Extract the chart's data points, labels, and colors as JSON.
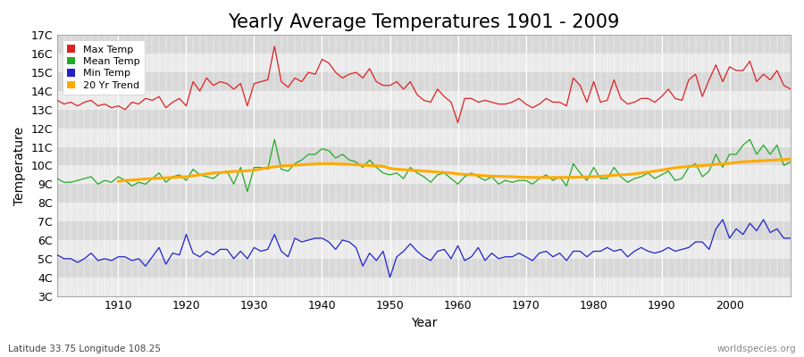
{
  "title": "Yearly Average Temperatures 1901 - 2009",
  "xlabel": "Year",
  "ylabel": "Temperature",
  "lat_lon_label": "Latitude 33.75 Longitude 108.25",
  "watermark": "worldspecies.org",
  "years": [
    1901,
    1902,
    1903,
    1904,
    1905,
    1906,
    1907,
    1908,
    1909,
    1910,
    1911,
    1912,
    1913,
    1914,
    1915,
    1916,
    1917,
    1918,
    1919,
    1920,
    1921,
    1922,
    1923,
    1924,
    1925,
    1926,
    1927,
    1928,
    1929,
    1930,
    1931,
    1932,
    1933,
    1934,
    1935,
    1936,
    1937,
    1938,
    1939,
    1940,
    1941,
    1942,
    1943,
    1944,
    1945,
    1946,
    1947,
    1948,
    1949,
    1950,
    1951,
    1952,
    1953,
    1954,
    1955,
    1956,
    1957,
    1958,
    1959,
    1960,
    1961,
    1962,
    1963,
    1964,
    1965,
    1966,
    1967,
    1968,
    1969,
    1970,
    1971,
    1972,
    1973,
    1974,
    1975,
    1976,
    1977,
    1978,
    1979,
    1980,
    1981,
    1982,
    1983,
    1984,
    1985,
    1986,
    1987,
    1988,
    1989,
    1990,
    1991,
    1992,
    1993,
    1994,
    1995,
    1996,
    1997,
    1998,
    1999,
    2000,
    2001,
    2002,
    2003,
    2004,
    2005,
    2006,
    2007,
    2008,
    2009
  ],
  "max_temp": [
    13.5,
    13.3,
    13.4,
    13.2,
    13.4,
    13.5,
    13.2,
    13.3,
    13.1,
    13.2,
    13.0,
    13.4,
    13.3,
    13.6,
    13.5,
    13.7,
    13.1,
    13.4,
    13.6,
    13.2,
    14.5,
    14.0,
    14.7,
    14.3,
    14.5,
    14.4,
    14.1,
    14.4,
    13.2,
    14.4,
    14.5,
    14.6,
    16.4,
    14.5,
    14.2,
    14.7,
    14.5,
    15.0,
    14.9,
    15.7,
    15.5,
    15.0,
    14.7,
    14.9,
    15.0,
    14.7,
    15.2,
    14.5,
    14.3,
    14.3,
    14.5,
    14.1,
    14.5,
    13.8,
    13.5,
    13.4,
    14.1,
    13.7,
    13.4,
    12.3,
    13.6,
    13.6,
    13.4,
    13.5,
    13.4,
    13.3,
    13.3,
    13.4,
    13.6,
    13.3,
    13.1,
    13.3,
    13.6,
    13.4,
    13.4,
    13.2,
    14.7,
    14.3,
    13.4,
    14.5,
    13.4,
    13.5,
    14.6,
    13.6,
    13.3,
    13.4,
    13.6,
    13.6,
    13.4,
    13.7,
    14.1,
    13.6,
    13.5,
    14.6,
    14.9,
    13.7,
    14.6,
    15.4,
    14.5,
    15.3,
    15.1,
    15.1,
    15.6,
    14.5,
    14.9,
    14.6,
    15.1,
    14.3,
    14.1
  ],
  "mean_temp": [
    9.3,
    9.1,
    9.1,
    9.2,
    9.3,
    9.4,
    9.0,
    9.2,
    9.1,
    9.4,
    9.2,
    8.9,
    9.1,
    9.0,
    9.3,
    9.6,
    9.1,
    9.4,
    9.5,
    9.2,
    9.8,
    9.5,
    9.4,
    9.3,
    9.6,
    9.7,
    9.0,
    9.9,
    8.6,
    9.9,
    9.9,
    9.8,
    11.4,
    9.8,
    9.7,
    10.1,
    10.3,
    10.6,
    10.6,
    10.9,
    10.8,
    10.4,
    10.6,
    10.3,
    10.2,
    9.9,
    10.3,
    9.9,
    9.6,
    9.5,
    9.6,
    9.3,
    9.9,
    9.6,
    9.4,
    9.1,
    9.5,
    9.6,
    9.3,
    9.0,
    9.4,
    9.6,
    9.4,
    9.2,
    9.4,
    9.0,
    9.2,
    9.1,
    9.2,
    9.2,
    9.0,
    9.3,
    9.5,
    9.2,
    9.4,
    8.9,
    10.1,
    9.6,
    9.2,
    9.9,
    9.3,
    9.3,
    9.9,
    9.4,
    9.1,
    9.3,
    9.4,
    9.6,
    9.3,
    9.5,
    9.7,
    9.2,
    9.3,
    9.9,
    10.1,
    9.4,
    9.7,
    10.6,
    9.9,
    10.6,
    10.6,
    11.1,
    11.4,
    10.6,
    11.1,
    10.6,
    11.1,
    10.0,
    10.2
  ],
  "min_temp": [
    5.2,
    5.0,
    5.0,
    4.8,
    5.0,
    5.3,
    4.9,
    5.0,
    4.9,
    5.1,
    5.1,
    4.9,
    5.0,
    4.6,
    5.1,
    5.6,
    4.7,
    5.3,
    5.2,
    6.3,
    5.3,
    5.1,
    5.4,
    5.2,
    5.5,
    5.5,
    5.0,
    5.4,
    5.0,
    5.6,
    5.4,
    5.5,
    6.3,
    5.4,
    5.1,
    6.1,
    5.9,
    6.0,
    6.1,
    6.1,
    5.9,
    5.5,
    6.0,
    5.9,
    5.6,
    4.6,
    5.3,
    4.9,
    5.4,
    4.0,
    5.1,
    5.4,
    5.8,
    5.4,
    5.1,
    4.9,
    5.4,
    5.5,
    5.0,
    5.7,
    4.9,
    5.1,
    5.6,
    4.9,
    5.3,
    5.0,
    5.1,
    5.1,
    5.3,
    5.1,
    4.9,
    5.3,
    5.4,
    5.1,
    5.3,
    4.9,
    5.4,
    5.4,
    5.1,
    5.4,
    5.4,
    5.6,
    5.4,
    5.5,
    5.1,
    5.4,
    5.6,
    5.4,
    5.3,
    5.4,
    5.6,
    5.4,
    5.5,
    5.6,
    5.9,
    5.9,
    5.5,
    6.6,
    7.1,
    6.1,
    6.6,
    6.3,
    6.9,
    6.5,
    7.1,
    6.4,
    6.6,
    6.1,
    6.1
  ],
  "trend_20yr_years": [
    1910,
    1911,
    1912,
    1913,
    1914,
    1915,
    1916,
    1917,
    1918,
    1919,
    1920,
    1921,
    1922,
    1923,
    1924,
    1925,
    1926,
    1927,
    1928,
    1929,
    1930,
    1931,
    1932,
    1933,
    1934,
    1935,
    1936,
    1937,
    1938,
    1939,
    1940,
    1941,
    1942,
    1943,
    1944,
    1945,
    1946,
    1947,
    1948,
    1949,
    1950,
    1951,
    1952,
    1953,
    1954,
    1955,
    1956,
    1957,
    1958,
    1959,
    1960,
    1961,
    1962,
    1963,
    1964,
    1965,
    1966,
    1967,
    1968,
    1969,
    1970,
    1971,
    1972,
    1973,
    1974,
    1975,
    1976,
    1977,
    1978,
    1979,
    1980,
    1981,
    1982,
    1983,
    1984,
    1985,
    1986,
    1987,
    1988,
    1989,
    1990,
    1991,
    1992,
    1993,
    1994,
    1995,
    1996,
    1997,
    1998,
    1999,
    2000,
    2001,
    2002,
    2003,
    2004,
    2005,
    2006,
    2007,
    2008,
    2009
  ],
  "trend_20yr": [
    9.15,
    9.2,
    9.22,
    9.25,
    9.28,
    9.3,
    9.32,
    9.34,
    9.36,
    9.38,
    9.4,
    9.45,
    9.5,
    9.55,
    9.6,
    9.62,
    9.65,
    9.68,
    9.7,
    9.72,
    9.75,
    9.82,
    9.88,
    9.93,
    9.97,
    10.0,
    10.02,
    10.04,
    10.06,
    10.08,
    10.1,
    10.1,
    10.09,
    10.08,
    10.06,
    10.04,
    10.02,
    10.0,
    9.98,
    9.96,
    9.85,
    9.8,
    9.78,
    9.75,
    9.73,
    9.7,
    9.68,
    9.65,
    9.62,
    9.6,
    9.55,
    9.52,
    9.5,
    9.48,
    9.45,
    9.43,
    9.42,
    9.41,
    9.4,
    9.38,
    9.37,
    9.36,
    9.36,
    9.36,
    9.36,
    9.36,
    9.36,
    9.37,
    9.38,
    9.39,
    9.4,
    9.42,
    9.45,
    9.48,
    9.5,
    9.52,
    9.55,
    9.6,
    9.65,
    9.7,
    9.76,
    9.82,
    9.88,
    9.92,
    9.95,
    9.98,
    10.0,
    10.03,
    10.06,
    10.08,
    10.12,
    10.16,
    10.2,
    10.22,
    10.24,
    10.26,
    10.28,
    10.3,
    10.32,
    10.35
  ],
  "max_color": "#dd2222",
  "mean_color": "#22aa22",
  "min_color": "#2222cc",
  "trend_color": "#ffaa00",
  "fig_bg_color": "#ffffff",
  "band_light": "#ebebeb",
  "band_dark": "#d8d8d8",
  "vgrid_color": "#ffffff",
  "ylim": [
    3,
    17
  ],
  "yticks": [
    3,
    4,
    5,
    6,
    7,
    8,
    9,
    10,
    11,
    12,
    13,
    14,
    15,
    16,
    17
  ],
  "ytick_labels": [
    "3C",
    "4C",
    "5C",
    "6C",
    "7C",
    "8C",
    "9C",
    "10C",
    "11C",
    "12C",
    "13C",
    "14C",
    "15C",
    "16C",
    "17C"
  ],
  "title_fontsize": 15,
  "axis_fontsize": 10,
  "tick_fontsize": 9,
  "legend_fontsize": 8
}
